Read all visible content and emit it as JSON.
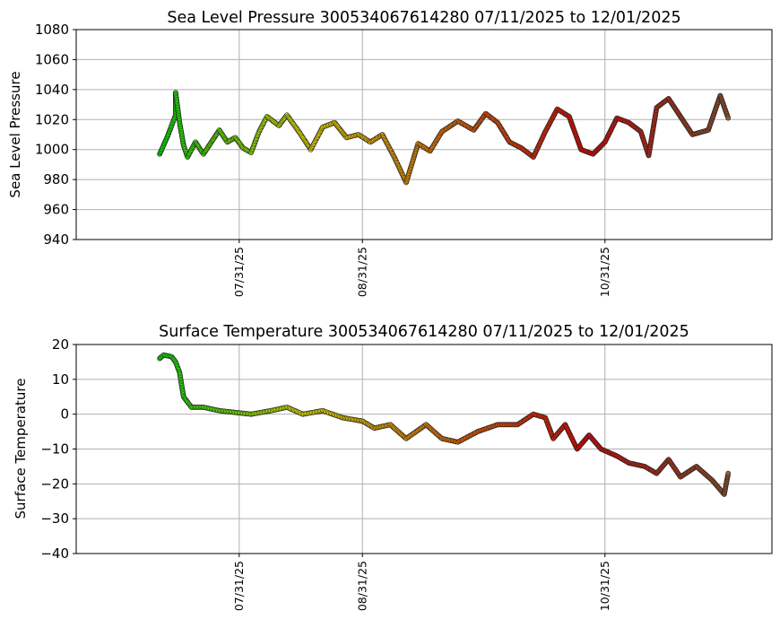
{
  "chart_data": [
    {
      "type": "scatter",
      "title": "Sea Level Pressure 300534067614280  07/11/2025 to 12/01/2025",
      "ylabel": "Sea Level Pressure",
      "xlabel": "",
      "xlim": [
        "2025-06-20",
        "2025-12-12"
      ],
      "ylim": [
        940,
        1080
      ],
      "yticks": [
        "940",
        "960",
        "980",
        "1000",
        "1020",
        "1040",
        "1060",
        "1080"
      ],
      "xticks": [
        {
          "date": "2025-07-31",
          "label": "07/31/25"
        },
        {
          "date": "2025-08-31",
          "label": "08/31/25"
        },
        {
          "date": "2025-10-31",
          "label": "10/31/25"
        }
      ],
      "grid": true,
      "color_by_time": [
        "#00ff00",
        "#ffff00",
        "#ff8000",
        "#ff0000",
        "#a05a2c"
      ],
      "points": [
        [
          "2025-07-11",
          997
        ],
        [
          "2025-07-12",
          1003
        ],
        [
          "2025-07-13",
          1009
        ],
        [
          "2025-07-14",
          1016
        ],
        [
          "2025-07-15",
          1023
        ],
        [
          "2025-07-15",
          1038
        ],
        [
          "2025-07-16",
          1018
        ],
        [
          "2025-07-17",
          1003
        ],
        [
          "2025-07-18",
          995
        ],
        [
          "2025-07-20",
          1005
        ],
        [
          "2025-07-22",
          997
        ],
        [
          "2025-07-24",
          1005
        ],
        [
          "2025-07-26",
          1013
        ],
        [
          "2025-07-28",
          1005
        ],
        [
          "2025-07-30",
          1008
        ],
        [
          "2025-08-01",
          1001
        ],
        [
          "2025-08-03",
          998
        ],
        [
          "2025-08-05",
          1012
        ],
        [
          "2025-08-07",
          1022
        ],
        [
          "2025-08-10",
          1016
        ],
        [
          "2025-08-12",
          1023
        ],
        [
          "2025-08-15",
          1012
        ],
        [
          "2025-08-18",
          1000
        ],
        [
          "2025-08-21",
          1015
        ],
        [
          "2025-08-24",
          1018
        ],
        [
          "2025-08-27",
          1008
        ],
        [
          "2025-08-30",
          1010
        ],
        [
          "2025-09-02",
          1005
        ],
        [
          "2025-09-05",
          1010
        ],
        [
          "2025-09-08",
          995
        ],
        [
          "2025-09-11",
          978
        ],
        [
          "2025-09-14",
          1004
        ],
        [
          "2025-09-17",
          999
        ],
        [
          "2025-09-20",
          1012
        ],
        [
          "2025-09-24",
          1019
        ],
        [
          "2025-09-28",
          1013
        ],
        [
          "2025-10-01",
          1024
        ],
        [
          "2025-10-04",
          1018
        ],
        [
          "2025-10-07",
          1005
        ],
        [
          "2025-10-10",
          1001
        ],
        [
          "2025-10-13",
          995
        ],
        [
          "2025-10-16",
          1012
        ],
        [
          "2025-10-19",
          1027
        ],
        [
          "2025-10-22",
          1022
        ],
        [
          "2025-10-25",
          1000
        ],
        [
          "2025-10-28",
          997
        ],
        [
          "2025-10-31",
          1005
        ],
        [
          "2025-11-03",
          1021
        ],
        [
          "2025-11-06",
          1018
        ],
        [
          "2025-11-09",
          1012
        ],
        [
          "2025-11-11",
          996
        ],
        [
          "2025-11-13",
          1028
        ],
        [
          "2025-11-16",
          1034
        ],
        [
          "2025-11-19",
          1022
        ],
        [
          "2025-11-22",
          1010
        ],
        [
          "2025-11-26",
          1013
        ],
        [
          "2025-11-29",
          1036
        ],
        [
          "2025-12-01",
          1021
        ]
      ]
    },
    {
      "type": "scatter",
      "title": "Surface Temperature 300534067614280  07/11/2025 to 12/01/2025",
      "ylabel": "Surface Temperature",
      "xlabel": "",
      "xlim": [
        "2025-06-20",
        "2025-12-12"
      ],
      "ylim": [
        -40,
        20
      ],
      "yticks": [
        "−40",
        "−30",
        "−20",
        "−10",
        "0",
        "10",
        "20"
      ],
      "xticks": [
        {
          "date": "2025-07-31",
          "label": "07/31/25"
        },
        {
          "date": "2025-08-31",
          "label": "08/31/25"
        },
        {
          "date": "2025-10-31",
          "label": "10/31/25"
        }
      ],
      "grid": true,
      "color_by_time": [
        "#00ff00",
        "#ffff00",
        "#ff8000",
        "#ff0000",
        "#a05a2c"
      ],
      "points": [
        [
          "2025-07-11",
          16
        ],
        [
          "2025-07-12",
          17
        ],
        [
          "2025-07-14",
          16.5
        ],
        [
          "2025-07-15",
          15
        ],
        [
          "2025-07-16",
          12
        ],
        [
          "2025-07-17",
          5
        ],
        [
          "2025-07-19",
          2
        ],
        [
          "2025-07-22",
          2
        ],
        [
          "2025-07-26",
          1
        ],
        [
          "2025-07-30",
          0.5
        ],
        [
          "2025-08-03",
          0
        ],
        [
          "2025-08-08",
          1
        ],
        [
          "2025-08-12",
          2
        ],
        [
          "2025-08-16",
          0
        ],
        [
          "2025-08-21",
          1
        ],
        [
          "2025-08-26",
          -1
        ],
        [
          "2025-08-31",
          -2
        ],
        [
          "2025-09-03",
          -4
        ],
        [
          "2025-09-07",
          -3
        ],
        [
          "2025-09-11",
          -7
        ],
        [
          "2025-09-16",
          -3
        ],
        [
          "2025-09-20",
          -7
        ],
        [
          "2025-09-24",
          -8
        ],
        [
          "2025-09-29",
          -5
        ],
        [
          "2025-10-04",
          -3
        ],
        [
          "2025-10-09",
          -3
        ],
        [
          "2025-10-13",
          0
        ],
        [
          "2025-10-16",
          -1
        ],
        [
          "2025-10-18",
          -7
        ],
        [
          "2025-10-21",
          -3
        ],
        [
          "2025-10-24",
          -10
        ],
        [
          "2025-10-27",
          -6
        ],
        [
          "2025-10-30",
          -10
        ],
        [
          "2025-11-03",
          -12
        ],
        [
          "2025-11-06",
          -14
        ],
        [
          "2025-11-10",
          -15
        ],
        [
          "2025-11-13",
          -17
        ],
        [
          "2025-11-16",
          -13
        ],
        [
          "2025-11-19",
          -18
        ],
        [
          "2025-11-23",
          -15
        ],
        [
          "2025-11-27",
          -19
        ],
        [
          "2025-11-30",
          -23
        ],
        [
          "2025-12-01",
          -17
        ]
      ]
    }
  ]
}
